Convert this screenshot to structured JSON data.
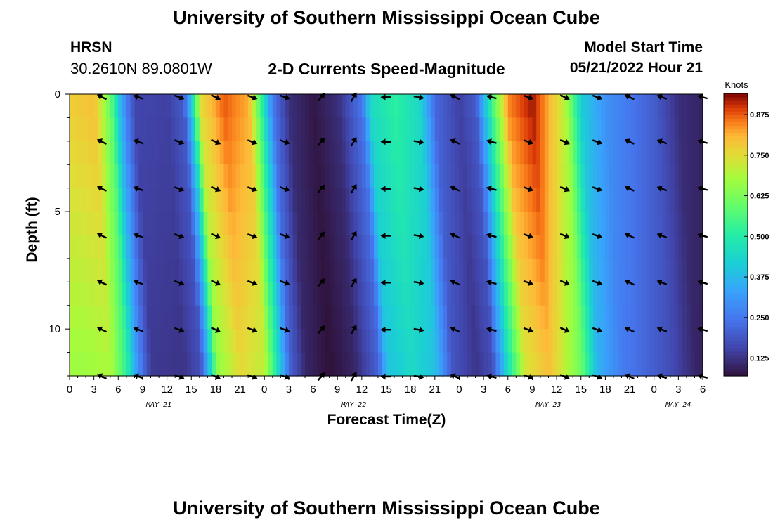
{
  "header": {
    "title": "University of Southern Mississippi Ocean Cube",
    "station": "HRSN",
    "coords": "30.2610N  89.0801W",
    "subtitle": "2-D Currents Speed-Magnitude",
    "model_label": "Model Start Time",
    "model_value": "05/21/2022 Hour 21"
  },
  "footer": {
    "title": "University of Southern Mississippi Ocean Cube"
  },
  "chart_data": {
    "type": "heatmap",
    "title": "2-D Currents Speed-Magnitude",
    "xlabel": "Forecast Time(Z)",
    "ylabel": "Depth (ft)",
    "x_start_hour": 0,
    "x_end_hour": 78,
    "xlim": [
      0,
      78
    ],
    "ylim": [
      0,
      12
    ],
    "x_tick_labels": [
      "0",
      "3",
      "6",
      "9",
      "12",
      "15",
      "18",
      "21",
      "0",
      "3",
      "6",
      "9",
      "12",
      "15",
      "18",
      "21",
      "0",
      "3",
      "6",
      "9",
      "12",
      "15",
      "18",
      "21",
      "0",
      "3",
      "6"
    ],
    "y_ticks": [
      0,
      5,
      10
    ],
    "y_tick_labels": [
      "0",
      "5",
      "10"
    ],
    "date_labels": [
      {
        "text": "MAY 21",
        "hour": 11
      },
      {
        "text": "MAY 22",
        "hour": 35
      },
      {
        "text": "MAY 23",
        "hour": 59
      },
      {
        "text": "MAY 24",
        "hour": 75
      }
    ],
    "colorbar": {
      "title": "Knots",
      "ticks": [
        0.125,
        0.25,
        0.375,
        0.5,
        0.625,
        0.75,
        0.875
      ],
      "tick_labels": [
        "0.125",
        "0.250",
        "0.375",
        "0.500",
        "0.625",
        "0.750",
        "0.875"
      ],
      "range": [
        0.07,
        0.94
      ]
    },
    "surface_speed_knots": [
      {
        "hour": 0,
        "v": 0.78
      },
      {
        "hour": 3,
        "v": 0.8
      },
      {
        "hour": 5,
        "v": 0.6
      },
      {
        "hour": 6,
        "v": 0.4
      },
      {
        "hour": 7,
        "v": 0.26
      },
      {
        "hour": 8,
        "v": 0.16
      },
      {
        "hour": 12,
        "v": 0.15
      },
      {
        "hour": 14,
        "v": 0.2
      },
      {
        "hour": 15,
        "v": 0.42
      },
      {
        "hour": 16,
        "v": 0.75
      },
      {
        "hour": 19,
        "v": 0.88
      },
      {
        "hour": 22,
        "v": 0.82
      },
      {
        "hour": 24,
        "v": 0.45
      },
      {
        "hour": 25,
        "v": 0.25
      },
      {
        "hour": 27,
        "v": 0.12
      },
      {
        "hour": 30,
        "v": 0.08
      },
      {
        "hour": 33,
        "v": 0.12
      },
      {
        "hour": 36,
        "v": 0.25
      },
      {
        "hour": 37,
        "v": 0.45
      },
      {
        "hour": 40,
        "v": 0.52
      },
      {
        "hour": 43,
        "v": 0.45
      },
      {
        "hour": 45,
        "v": 0.22
      },
      {
        "hour": 48,
        "v": 0.15
      },
      {
        "hour": 50,
        "v": 0.2
      },
      {
        "hour": 52,
        "v": 0.55
      },
      {
        "hour": 54,
        "v": 0.85
      },
      {
        "hour": 57,
        "v": 0.93
      },
      {
        "hour": 61,
        "v": 0.7
      },
      {
        "hour": 63,
        "v": 0.42
      },
      {
        "hour": 66,
        "v": 0.3
      },
      {
        "hour": 72,
        "v": 0.2
      },
      {
        "hour": 75,
        "v": 0.12
      },
      {
        "hour": 78,
        "v": 0.1
      }
    ],
    "arrow_hours": [
      4,
      8.5,
      13.5,
      18,
      22.5,
      26.5,
      31,
      35,
      39,
      43,
      47.5,
      52,
      56.5,
      61,
      65,
      69,
      73,
      78
    ],
    "arrow_depths": [
      0.1,
      2,
      4,
      6,
      8,
      10,
      12
    ],
    "arrow_direction_deg": [
      205,
      200,
      20,
      25,
      20,
      20,
      310,
      300,
      180,
      10,
      205,
      195,
      20,
      25,
      20,
      205,
      200,
      195
    ]
  }
}
